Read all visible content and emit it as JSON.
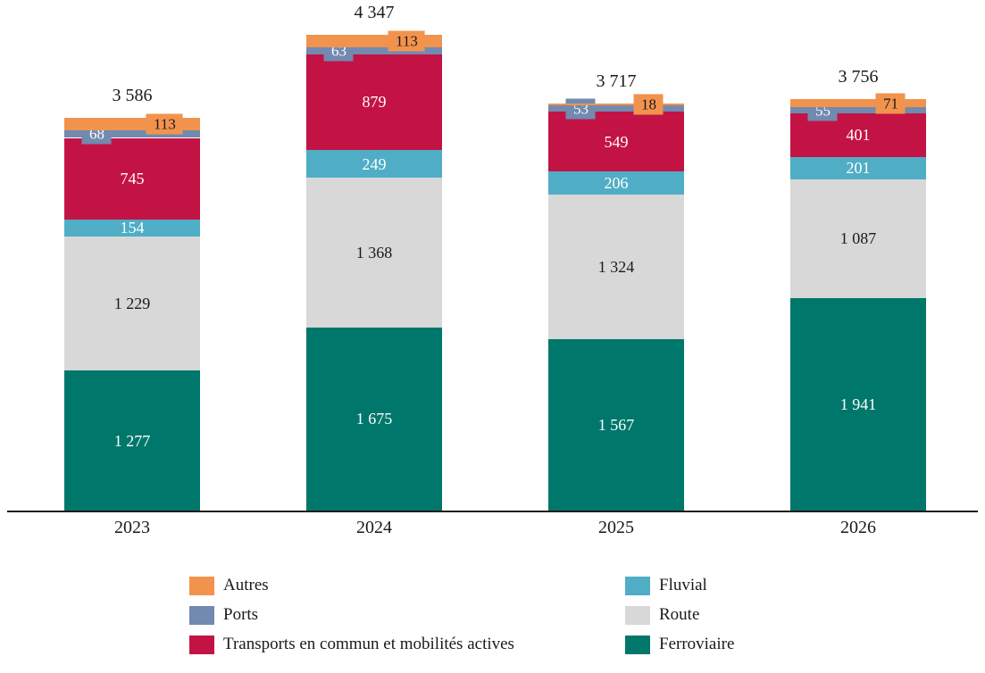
{
  "chart_data": {
    "type": "bar",
    "stacked": true,
    "title": "",
    "xlabel": "",
    "ylabel": "",
    "grid": false,
    "categories": [
      "2023",
      "2024",
      "2025",
      "2026"
    ],
    "series": [
      {
        "key": "ferroviaire",
        "name": "Ferroviaire",
        "color": "#00776B",
        "values": [
          1277,
          1675,
          1567,
          1941
        ],
        "labels": [
          "1 277",
          "1 675",
          "1 567",
          "1 941"
        ],
        "label_style": "inside-light"
      },
      {
        "key": "route",
        "name": "Route",
        "color": "#D8D8D8",
        "values": [
          1229,
          1368,
          1324,
          1087
        ],
        "labels": [
          "1 229",
          "1 368",
          "1 324",
          "1 087"
        ],
        "label_style": "inside-dark"
      },
      {
        "key": "fluvial",
        "name": "Fluvial",
        "color": "#4FAEC6",
        "values": [
          154,
          249,
          206,
          201
        ],
        "labels": [
          "154",
          "249",
          "206",
          "201"
        ],
        "label_style": "inside-light"
      },
      {
        "key": "transports-en-commun",
        "name": "Transports en commun et mobilités actives",
        "color": "#C31345",
        "values": [
          745,
          879,
          549,
          401
        ],
        "labels": [
          "745",
          "879",
          "549",
          "401"
        ],
        "label_style": "inside-light"
      },
      {
        "key": "ports",
        "name": "Ports",
        "color": "#7289B0",
        "values": [
          68,
          63,
          53,
          55
        ],
        "labels": [
          "68",
          "63",
          "53",
          "55"
        ],
        "label_style": "callout-left-light"
      },
      {
        "key": "autres",
        "name": "Autres",
        "color": "#F2934D",
        "values": [
          113,
          113,
          18,
          71
        ],
        "labels": [
          "113",
          "113",
          "18",
          "71"
        ],
        "label_style": "callout-right-dark"
      }
    ],
    "totals": [
      "3 586",
      "4 347",
      "3 717",
      "3 756"
    ],
    "ylim": [
      0,
      4347
    ],
    "legend_position": "bottom",
    "legend_columns": [
      {
        "x": 212,
        "items": [
          "autres",
          "ports",
          "transports-en-commun"
        ]
      },
      {
        "x": 700,
        "items": [
          "fluvial",
          "route",
          "ferroviaire"
        ]
      }
    ],
    "text_color": "#1a1a1a",
    "label_light_color": "#ffffff"
  }
}
